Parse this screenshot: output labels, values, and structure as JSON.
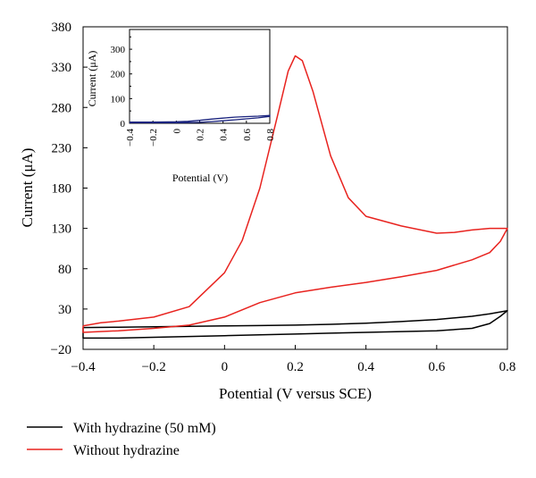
{
  "chart_data": [
    {
      "type": "line",
      "title": "",
      "xlabel": "Potential (V versus SCE)",
      "ylabel": "Current (μA)",
      "xlim": [
        -0.4,
        0.8
      ],
      "ylim": [
        -20,
        380
      ],
      "xticks": [
        "−0.4",
        "−0.2",
        "0",
        "0.2",
        "0.4",
        "0.6",
        "0.8"
      ],
      "yticks": [
        "−20",
        "30",
        "80",
        "130",
        "180",
        "230",
        "280",
        "330",
        "380"
      ],
      "grid": false,
      "legend_position": "bottom-left",
      "series": [
        {
          "name": "With hydrazine (50 mM)",
          "color": "#000000",
          "x": [
            -0.4,
            -0.3,
            -0.2,
            -0.1,
            0.0,
            0.1,
            0.2,
            0.3,
            0.4,
            0.5,
            0.6,
            0.7,
            0.75,
            0.8,
            0.8,
            0.78,
            0.75,
            0.7,
            0.6,
            0.5,
            0.4,
            0.3,
            0.2,
            0.1,
            0.0,
            -0.1,
            -0.2,
            -0.3,
            -0.4,
            -0.4
          ],
          "y": [
            7,
            7.5,
            8,
            8.5,
            9,
            9.5,
            10,
            11,
            12.5,
            14.5,
            17,
            21,
            24,
            28,
            28,
            21,
            12,
            6,
            3,
            2,
            1,
            0,
            -1,
            -2,
            -3,
            -4,
            -5,
            -6,
            -6,
            7
          ]
        },
        {
          "name": "Without hydrazine",
          "color": "#e8231f",
          "x": [
            -0.4,
            -0.35,
            -0.3,
            -0.2,
            -0.1,
            0.0,
            0.05,
            0.1,
            0.15,
            0.18,
            0.2,
            0.22,
            0.25,
            0.3,
            0.35,
            0.4,
            0.5,
            0.6,
            0.65,
            0.7,
            0.75,
            0.8,
            0.8,
            0.78,
            0.75,
            0.7,
            0.6,
            0.5,
            0.4,
            0.3,
            0.2,
            0.1,
            0.0,
            -0.1,
            -0.2,
            -0.3,
            -0.4,
            -0.4
          ],
          "y": [
            9,
            13,
            15,
            20,
            33,
            75,
            115,
            180,
            270,
            325,
            344,
            338,
            300,
            220,
            168,
            145,
            133,
            124,
            125,
            128,
            130,
            130,
            130,
            114,
            100,
            91,
            78,
            70,
            63,
            57,
            50,
            38,
            20,
            10,
            6,
            3,
            1,
            9
          ]
        }
      ]
    },
    {
      "type": "line",
      "title": "",
      "xlabel": "Potential (V)",
      "ylabel": "Current (μA)",
      "xlim": [
        -0.4,
        0.8
      ],
      "ylim": [
        0,
        380
      ],
      "xticks": [
        "−0.4",
        "−0.2",
        "0",
        "0.2",
        "0.4",
        "0.6",
        "0.8"
      ],
      "yticks": [
        "0",
        "100",
        "200",
        "300"
      ],
      "grid": false,
      "legend_position": "none",
      "series": [
        {
          "color": "#1a237e",
          "x": [
            -0.4,
            -0.2,
            0.0,
            0.1,
            0.2,
            0.3,
            0.4,
            0.5,
            0.6,
            0.7,
            0.8,
            0.8,
            0.7,
            0.6,
            0.5,
            0.4,
            0.3,
            0.2,
            0.1,
            0.0,
            -0.2,
            -0.4
          ],
          "y": [
            5,
            5,
            6,
            8,
            12,
            17,
            21,
            25,
            27,
            29,
            32,
            28,
            22,
            18,
            14,
            10,
            7,
            4,
            3,
            2,
            2,
            2
          ]
        }
      ]
    }
  ]
}
